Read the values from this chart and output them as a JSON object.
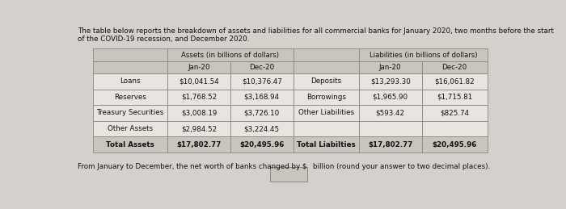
{
  "intro_text_line1": "The table below reports the breakdown of assets and liabilities for all commercial banks for January 2020, two months before the start",
  "intro_text_line2": "of the COVID-19 recession, and December 2020.",
  "assets_header": "Assets (in billions of dollars)",
  "liabilities_header": "Liabilities (in billions of dollars)",
  "col_jan": "Jan-20",
  "col_dec": "Dec-20",
  "asset_rows": [
    [
      "Loans",
      "$10,041.54",
      "$10,376.47"
    ],
    [
      "Reserves",
      "$1,768.52",
      "$3,168.94"
    ],
    [
      "Treasury Securities",
      "$3,008.19",
      "$3,726.10"
    ],
    [
      "Other Assets",
      "$2,984.52",
      "$3,224.45"
    ],
    [
      "Total Assets",
      "$17,802.77",
      "$20,495.96"
    ]
  ],
  "liability_rows": [
    [
      "Deposits",
      "$13,293.30",
      "$16,061.82"
    ],
    [
      "Borrowings",
      "$1,965.90",
      "$1,715.81"
    ],
    [
      "Other Liabilities",
      "$593.42",
      "$825.74"
    ],
    [
      "",
      "",
      ""
    ],
    [
      "Total Liabilties",
      "$17,802.77",
      "$20,495.96"
    ]
  ],
  "footer_text": "From January to December, the net worth of banks changed by $",
  "footer_suffix": "billion (round your answer to two decimal places).",
  "bg_color": "#d4d0cb",
  "table_bg_light": "#e8e5e0",
  "header_bg": "#c8c4be",
  "border_color": "#888880",
  "text_color": "#111111",
  "answer_box_color": "#c8c4be"
}
